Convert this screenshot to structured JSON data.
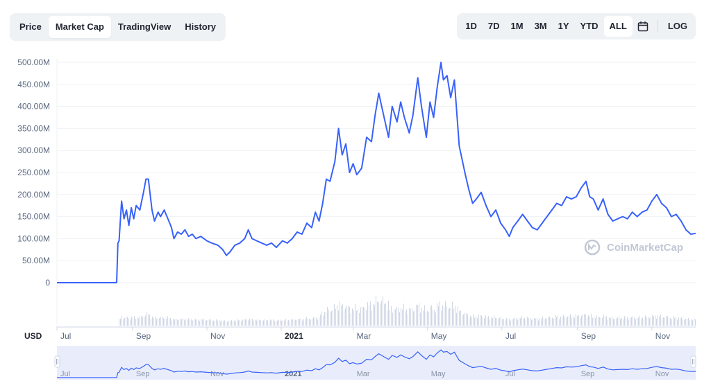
{
  "tabs": [
    {
      "label": "Price",
      "active": false
    },
    {
      "label": "Market Cap",
      "active": true
    },
    {
      "label": "TradingView",
      "active": false
    },
    {
      "label": "History",
      "active": false
    }
  ],
  "ranges": [
    {
      "label": "1D",
      "active": false
    },
    {
      "label": "7D",
      "active": false
    },
    {
      "label": "1M",
      "active": false
    },
    {
      "label": "3M",
      "active": false
    },
    {
      "label": "1Y",
      "active": false
    },
    {
      "label": "YTD",
      "active": false
    },
    {
      "label": "ALL",
      "active": true
    }
  ],
  "calendar_icon": "calendar-icon",
  "log_label": "LOG",
  "currency_label": "USD",
  "watermark": "CoinMarketCap",
  "colors": {
    "line": "#3861fb",
    "volume": "#cfd6e4",
    "navigator_bg": "#e9edfb",
    "grid": "#eff2f5"
  },
  "chart_data": {
    "type": "line",
    "series": [
      {
        "values": [
          [
            "2020-07-01",
            0
          ],
          [
            "2020-07-20",
            0
          ],
          [
            "2020-08-10",
            0
          ],
          [
            "2020-08-19",
            0
          ],
          [
            "2020-08-20",
            90
          ],
          [
            "2020-08-21",
            95
          ],
          [
            "2020-08-23",
            185
          ],
          [
            "2020-08-25",
            145
          ],
          [
            "2020-08-27",
            165
          ],
          [
            "2020-08-29",
            130
          ],
          [
            "2020-08-31",
            170
          ],
          [
            "2020-09-02",
            145
          ],
          [
            "2020-09-04",
            175
          ],
          [
            "2020-09-07",
            165
          ],
          [
            "2020-09-10",
            205
          ],
          [
            "2020-09-12",
            235
          ],
          [
            "2020-09-14",
            235
          ],
          [
            "2020-09-17",
            165
          ],
          [
            "2020-09-19",
            140
          ],
          [
            "2020-09-22",
            160
          ],
          [
            "2020-09-24",
            150
          ],
          [
            "2020-09-27",
            165
          ],
          [
            "2020-09-30",
            145
          ],
          [
            "2020-10-03",
            125
          ],
          [
            "2020-10-05",
            100
          ],
          [
            "2020-10-08",
            115
          ],
          [
            "2020-10-11",
            110
          ],
          [
            "2020-10-14",
            120
          ],
          [
            "2020-10-17",
            105
          ],
          [
            "2020-10-20",
            110
          ],
          [
            "2020-10-23",
            100
          ],
          [
            "2020-10-27",
            105
          ],
          [
            "2020-11-01",
            95
          ],
          [
            "2020-11-05",
            90
          ],
          [
            "2020-11-10",
            85
          ],
          [
            "2020-11-14",
            75
          ],
          [
            "2020-11-17",
            62
          ],
          [
            "2020-11-20",
            70
          ],
          [
            "2020-11-24",
            85
          ],
          [
            "2020-11-28",
            90
          ],
          [
            "2020-12-02",
            100
          ],
          [
            "2020-12-05",
            120
          ],
          [
            "2020-12-08",
            100
          ],
          [
            "2020-12-12",
            95
          ],
          [
            "2020-12-16",
            90
          ],
          [
            "2020-12-20",
            85
          ],
          [
            "2020-12-24",
            90
          ],
          [
            "2020-12-28",
            80
          ],
          [
            "2021-01-02",
            95
          ],
          [
            "2021-01-06",
            90
          ],
          [
            "2021-01-10",
            100
          ],
          [
            "2021-01-14",
            115
          ],
          [
            "2021-01-18",
            110
          ],
          [
            "2021-01-22",
            135
          ],
          [
            "2021-01-26",
            125
          ],
          [
            "2021-01-29",
            160
          ],
          [
            "2021-02-01",
            140
          ],
          [
            "2021-02-04",
            180
          ],
          [
            "2021-02-07",
            235
          ],
          [
            "2021-02-10",
            230
          ],
          [
            "2021-02-14",
            275
          ],
          [
            "2021-02-17",
            350
          ],
          [
            "2021-02-20",
            290
          ],
          [
            "2021-02-23",
            315
          ],
          [
            "2021-02-26",
            250
          ],
          [
            "2021-03-01",
            270
          ],
          [
            "2021-03-04",
            245
          ],
          [
            "2021-03-08",
            260
          ],
          [
            "2021-03-12",
            330
          ],
          [
            "2021-03-16",
            320
          ],
          [
            "2021-03-19",
            380
          ],
          [
            "2021-03-22",
            430
          ],
          [
            "2021-03-26",
            380
          ],
          [
            "2021-03-30",
            330
          ],
          [
            "2021-04-02",
            400
          ],
          [
            "2021-04-06",
            365
          ],
          [
            "2021-04-09",
            410
          ],
          [
            "2021-04-12",
            375
          ],
          [
            "2021-04-16",
            340
          ],
          [
            "2021-04-19",
            380
          ],
          [
            "2021-04-23",
            465
          ],
          [
            "2021-04-26",
            400
          ],
          [
            "2021-04-30",
            330
          ],
          [
            "2021-05-03",
            410
          ],
          [
            "2021-05-06",
            375
          ],
          [
            "2021-05-09",
            445
          ],
          [
            "2021-05-12",
            500
          ],
          [
            "2021-05-14",
            460
          ],
          [
            "2021-05-17",
            470
          ],
          [
            "2021-05-20",
            420
          ],
          [
            "2021-05-23",
            460
          ],
          [
            "2021-05-27",
            310
          ],
          [
            "2021-06-01",
            245
          ],
          [
            "2021-06-04",
            210
          ],
          [
            "2021-06-07",
            180
          ],
          [
            "2021-06-10",
            190
          ],
          [
            "2021-06-14",
            205
          ],
          [
            "2021-06-18",
            175
          ],
          [
            "2021-06-22",
            150
          ],
          [
            "2021-06-26",
            165
          ],
          [
            "2021-06-30",
            135
          ],
          [
            "2021-07-04",
            120
          ],
          [
            "2021-07-07",
            105
          ],
          [
            "2021-07-10",
            125
          ],
          [
            "2021-07-14",
            140
          ],
          [
            "2021-07-18",
            155
          ],
          [
            "2021-07-22",
            140
          ],
          [
            "2021-07-26",
            125
          ],
          [
            "2021-07-30",
            120
          ],
          [
            "2021-08-03",
            135
          ],
          [
            "2021-08-07",
            150
          ],
          [
            "2021-08-11",
            165
          ],
          [
            "2021-08-15",
            180
          ],
          [
            "2021-08-19",
            175
          ],
          [
            "2021-08-23",
            195
          ],
          [
            "2021-08-27",
            190
          ],
          [
            "2021-08-31",
            195
          ],
          [
            "2021-09-04",
            215
          ],
          [
            "2021-09-08",
            230
          ],
          [
            "2021-09-11",
            195
          ],
          [
            "2021-09-14",
            190
          ],
          [
            "2021-09-18",
            165
          ],
          [
            "2021-09-22",
            190
          ],
          [
            "2021-09-26",
            155
          ],
          [
            "2021-09-30",
            140
          ],
          [
            "2021-10-04",
            145
          ],
          [
            "2021-10-08",
            150
          ],
          [
            "2021-10-12",
            145
          ],
          [
            "2021-10-16",
            160
          ],
          [
            "2021-10-20",
            150
          ],
          [
            "2021-10-24",
            160
          ],
          [
            "2021-10-28",
            165
          ],
          [
            "2021-11-01",
            185
          ],
          [
            "2021-11-05",
            200
          ],
          [
            "2021-11-09",
            180
          ],
          [
            "2021-11-13",
            170
          ],
          [
            "2021-11-17",
            150
          ],
          [
            "2021-11-21",
            155
          ],
          [
            "2021-11-25",
            140
          ],
          [
            "2021-11-29",
            120
          ],
          [
            "2021-12-03",
            110
          ],
          [
            "2021-12-07",
            112
          ]
        ]
      }
    ],
    "y_ticks": [
      "0",
      "50.00M",
      "100.00M",
      "150.00M",
      "200.00M",
      "250.00M",
      "300.00M",
      "350.00M",
      "400.00M",
      "450.00M",
      "500.00M"
    ],
    "y_unit": "millions USD",
    "ylim": [
      0,
      500
    ],
    "x_range": [
      "2020-07-01",
      "2021-12-07"
    ],
    "x_ticks": [
      {
        "label": "Jul",
        "date": "2020-07-01",
        "year": false
      },
      {
        "label": "Sep",
        "date": "2020-09-01",
        "year": false
      },
      {
        "label": "Nov",
        "date": "2020-11-01",
        "year": false
      },
      {
        "label": "2021",
        "date": "2021-01-01",
        "year": true
      },
      {
        "label": "Mar",
        "date": "2021-03-01",
        "year": false
      },
      {
        "label": "May",
        "date": "2021-05-01",
        "year": false
      },
      {
        "label": "Jul",
        "date": "2021-07-01",
        "year": false
      },
      {
        "label": "Sep",
        "date": "2021-09-01",
        "year": false
      },
      {
        "label": "Nov",
        "date": "2021-11-01",
        "year": false
      }
    ],
    "grid": true,
    "volume_bars": true,
    "navigator": true,
    "scale": "linear"
  }
}
